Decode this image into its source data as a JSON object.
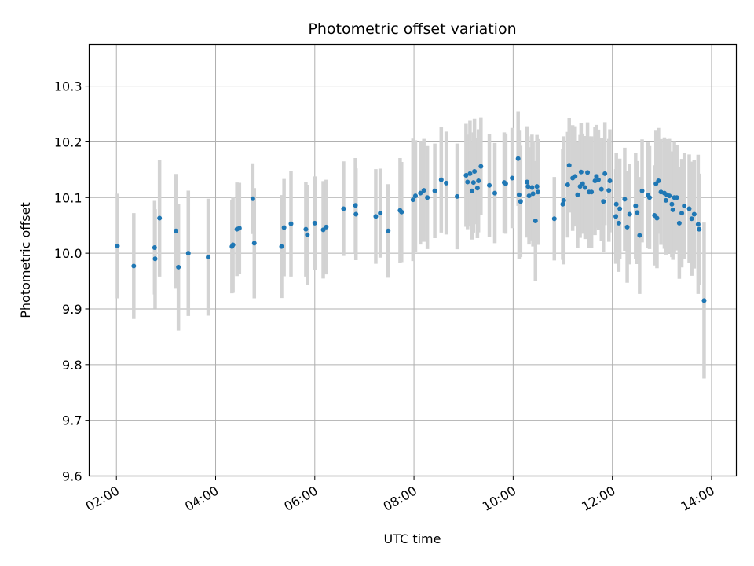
{
  "chart_data": {
    "type": "scatter",
    "title": "Photometric offset variation",
    "xlabel": "UTC time",
    "ylabel": "Photometric offset",
    "x_unit": "hours UTC",
    "xlim": [
      1.45,
      14.5
    ],
    "ylim": [
      9.6,
      10.375
    ],
    "xticks": [
      2,
      4,
      6,
      8,
      10,
      12,
      14
    ],
    "xtick_labels": [
      "02:00",
      "04:00",
      "06:00",
      "08:00",
      "10:00",
      "12:00",
      "14:00"
    ],
    "yticks": [
      9.6,
      9.7,
      9.8,
      9.9,
      10.0,
      10.1,
      10.2,
      10.3
    ],
    "ytick_labels": [
      "9.6",
      "9.7",
      "9.8",
      "9.9",
      "10.0",
      "10.1",
      "10.2",
      "10.3"
    ],
    "grid": true,
    "point_color": "#1f77b4",
    "errorbar_color": "#d3d3d3",
    "points": [
      [
        2.02,
        10.013,
        0.188
      ],
      [
        2.35,
        9.977,
        0.19
      ],
      [
        2.77,
        10.01,
        0.168
      ],
      [
        2.78,
        9.99,
        0.178
      ],
      [
        2.87,
        10.063,
        0.21
      ],
      [
        3.2,
        10.04,
        0.205
      ],
      [
        3.25,
        9.975,
        0.228
      ],
      [
        3.45,
        10.0,
        0.225
      ],
      [
        3.85,
        9.993,
        0.21
      ],
      [
        4.33,
        10.012,
        0.168
      ],
      [
        4.35,
        10.015,
        0.172
      ],
      [
        4.43,
        10.043,
        0.168
      ],
      [
        4.48,
        10.045,
        0.163
      ],
      [
        4.75,
        10.098,
        0.127
      ],
      [
        4.78,
        10.018,
        0.198
      ],
      [
        5.33,
        10.012,
        0.185
      ],
      [
        5.38,
        10.046,
        0.175
      ],
      [
        5.52,
        10.053,
        0.19
      ],
      [
        5.82,
        10.043,
        0.17
      ],
      [
        5.85,
        10.033,
        0.18
      ],
      [
        6.0,
        10.054,
        0.168
      ],
      [
        6.17,
        10.042,
        0.175
      ],
      [
        6.23,
        10.047,
        0.17
      ],
      [
        6.58,
        10.08,
        0.17
      ],
      [
        6.82,
        10.086,
        0.17
      ],
      [
        6.83,
        10.07,
        0.165
      ],
      [
        7.23,
        10.066,
        0.17
      ],
      [
        7.32,
        10.072,
        0.16
      ],
      [
        7.48,
        10.04,
        0.168
      ],
      [
        7.72,
        10.077,
        0.188
      ],
      [
        7.75,
        10.074,
        0.18
      ],
      [
        7.98,
        10.096,
        0.22
      ],
      [
        8.03,
        10.103,
        0.2
      ],
      [
        8.13,
        10.108,
        0.185
      ],
      [
        8.2,
        10.113,
        0.185
      ],
      [
        8.27,
        10.1,
        0.185
      ],
      [
        8.42,
        10.112,
        0.17
      ],
      [
        8.55,
        10.132,
        0.19
      ],
      [
        8.65,
        10.126,
        0.185
      ],
      [
        8.87,
        10.102,
        0.19
      ],
      [
        9.05,
        10.14,
        0.185
      ],
      [
        9.08,
        10.128,
        0.17
      ],
      [
        9.13,
        10.143,
        0.19
      ],
      [
        9.17,
        10.112,
        0.175
      ],
      [
        9.2,
        10.127,
        0.18
      ],
      [
        9.22,
        10.147,
        0.19
      ],
      [
        9.28,
        10.117,
        0.18
      ],
      [
        9.3,
        10.13,
        0.185
      ],
      [
        9.35,
        10.156,
        0.175
      ],
      [
        9.52,
        10.122,
        0.185
      ],
      [
        9.63,
        10.108,
        0.18
      ],
      [
        9.82,
        10.127,
        0.18
      ],
      [
        9.85,
        10.125,
        0.18
      ],
      [
        9.98,
        10.135,
        0.18
      ],
      [
        10.1,
        10.17,
        0.17
      ],
      [
        10.12,
        10.105,
        0.23
      ],
      [
        10.15,
        10.093,
        0.2
      ],
      [
        10.28,
        10.128,
        0.2
      ],
      [
        10.3,
        10.12,
        0.18
      ],
      [
        10.32,
        10.103,
        0.175
      ],
      [
        10.38,
        10.118,
        0.19
      ],
      [
        10.4,
        10.107,
        0.19
      ],
      [
        10.45,
        10.058,
        0.215
      ],
      [
        10.48,
        10.12,
        0.185
      ],
      [
        10.5,
        10.11,
        0.19
      ],
      [
        10.83,
        10.062,
        0.15
      ],
      [
        11.0,
        10.088,
        0.2
      ],
      [
        11.02,
        10.095,
        0.23
      ],
      [
        11.1,
        10.123,
        0.19
      ],
      [
        11.13,
        10.158,
        0.17
      ],
      [
        11.2,
        10.135,
        0.19
      ],
      [
        11.25,
        10.138,
        0.18
      ],
      [
        11.3,
        10.105,
        0.19
      ],
      [
        11.35,
        10.12,
        0.185
      ],
      [
        11.37,
        10.146,
        0.175
      ],
      [
        11.4,
        10.125,
        0.18
      ],
      [
        11.45,
        10.118,
        0.185
      ],
      [
        11.5,
        10.145,
        0.18
      ],
      [
        11.53,
        10.11,
        0.2
      ],
      [
        11.58,
        10.11,
        0.2
      ],
      [
        11.65,
        10.13,
        0.195
      ],
      [
        11.68,
        10.138,
        0.185
      ],
      [
        11.72,
        10.132,
        0.18
      ],
      [
        11.78,
        10.115,
        0.185
      ],
      [
        11.82,
        10.093,
        0.18
      ],
      [
        11.85,
        10.143,
        0.185
      ],
      [
        11.93,
        10.113,
        0.185
      ],
      [
        11.95,
        10.13,
        0.185
      ],
      [
        12.07,
        10.066,
        0.17
      ],
      [
        12.08,
        10.088,
        0.185
      ],
      [
        12.13,
        10.054,
        0.175
      ],
      [
        12.15,
        10.08,
        0.18
      ],
      [
        12.25,
        10.097,
        0.185
      ],
      [
        12.3,
        10.047,
        0.2
      ],
      [
        12.35,
        10.07,
        0.18
      ],
      [
        12.47,
        10.085,
        0.19
      ],
      [
        12.5,
        10.073,
        0.185
      ],
      [
        12.55,
        10.032,
        0.21
      ],
      [
        12.6,
        10.112,
        0.185
      ],
      [
        12.72,
        10.104,
        0.19
      ],
      [
        12.75,
        10.1,
        0.185
      ],
      [
        12.85,
        10.068,
        0.18
      ],
      [
        12.88,
        10.125,
        0.19
      ],
      [
        12.9,
        10.063,
        0.18
      ],
      [
        12.93,
        10.13,
        0.19
      ],
      [
        12.98,
        10.11,
        0.19
      ],
      [
        13.05,
        10.108,
        0.2
      ],
      [
        13.08,
        10.095,
        0.195
      ],
      [
        13.1,
        10.105,
        0.2
      ],
      [
        13.15,
        10.103,
        0.205
      ],
      [
        13.2,
        10.088,
        0.19
      ],
      [
        13.22,
        10.078,
        0.18
      ],
      [
        13.25,
        10.1,
        0.2
      ],
      [
        13.3,
        10.1,
        0.19
      ],
      [
        13.35,
        10.054,
        0.2
      ],
      [
        13.4,
        10.072,
        0.195
      ],
      [
        13.45,
        10.085,
        0.19
      ],
      [
        13.55,
        10.08,
        0.195
      ],
      [
        13.6,
        10.062,
        0.205
      ],
      [
        13.65,
        10.07,
        0.195
      ],
      [
        13.73,
        10.052,
        0.25
      ],
      [
        13.75,
        10.043,
        0.2
      ],
      [
        13.85,
        9.915,
        0.28
      ]
    ]
  }
}
